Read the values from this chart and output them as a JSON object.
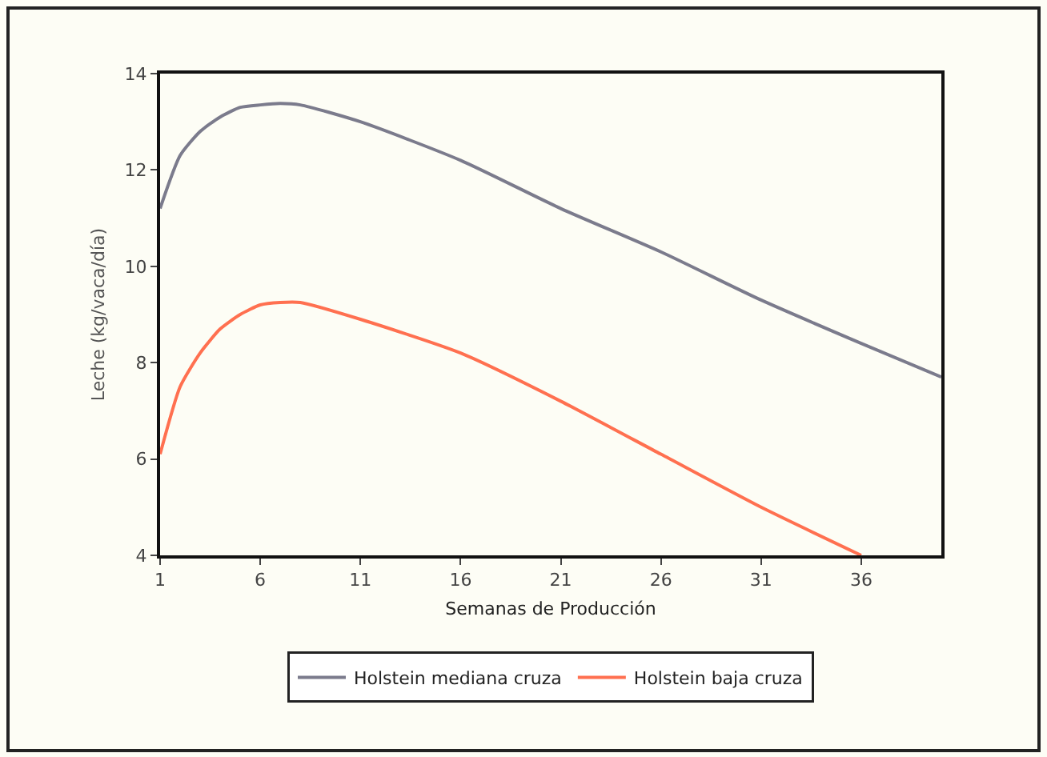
{
  "chart_data": {
    "type": "line",
    "xlabel": "Semanas de Producción",
    "ylabel": "Leche (kg/vaca/día)",
    "xlim": [
      1,
      40
    ],
    "xticks": [
      1,
      6,
      11,
      16,
      21,
      26,
      31,
      36
    ],
    "ylim": [
      4,
      14
    ],
    "yticks": [
      4,
      6,
      8,
      10,
      12,
      14
    ],
    "grid": false,
    "legend": "bottom",
    "marker": "none",
    "line_style": "solid",
    "series": [
      {
        "name": "Holstein mediana cruza",
        "color": "#7b7b8c",
        "x": [
          1,
          2,
          3,
          4,
          5,
          6,
          7,
          8,
          11,
          16,
          21,
          26,
          31,
          36,
          40
        ],
        "values": [
          11.2,
          12.3,
          12.8,
          13.1,
          13.3,
          13.35,
          13.38,
          13.35,
          13.0,
          12.2,
          11.2,
          10.3,
          9.3,
          8.4,
          7.7
        ]
      },
      {
        "name": "Holstein baja cruza",
        "color": "#ff7050",
        "x": [
          1,
          2,
          3,
          4,
          5,
          6,
          7,
          8,
          11,
          16,
          21,
          26,
          31,
          36
        ],
        "values": [
          6.1,
          7.5,
          8.2,
          8.7,
          9.0,
          9.2,
          9.25,
          9.25,
          8.9,
          8.2,
          7.2,
          6.1,
          5.0,
          4.0
        ]
      }
    ]
  }
}
